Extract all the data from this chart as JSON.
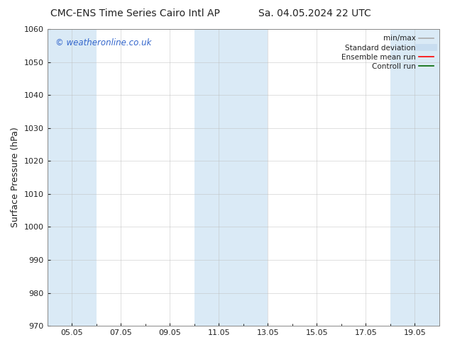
{
  "title": "CMC-ENS Time Series Cairo Intl AP",
  "title2": "Sa. 04.05.2024 22 UTC",
  "ylabel": "Surface Pressure (hPa)",
  "ylim": [
    970,
    1060
  ],
  "yticks": [
    970,
    980,
    990,
    1000,
    1010,
    1020,
    1030,
    1040,
    1050,
    1060
  ],
  "xtick_labels": [
    "05.05",
    "07.05",
    "09.05",
    "11.05",
    "13.05",
    "15.05",
    "17.05",
    "19.05"
  ],
  "xtick_positions": [
    1,
    3,
    5,
    7,
    9,
    11,
    13,
    15
  ],
  "xlim": [
    0,
    16
  ],
  "shaded_bands": [
    {
      "x_start": 0,
      "x_end": 2
    },
    {
      "x_start": 6,
      "x_end": 9
    },
    {
      "x_start": 14,
      "x_end": 16
    }
  ],
  "shade_color": "#daeaf6",
  "background_color": "#ffffff",
  "watermark_text": "© weatheronline.co.uk",
  "watermark_color": "#3366cc",
  "legend_entries": [
    {
      "label": "min/max",
      "color": "#aaaaaa",
      "lw": 1.2
    },
    {
      "label": "Standard deviation",
      "color": "#c8ddf0",
      "lw": 7
    },
    {
      "label": "Ensemble mean run",
      "color": "#ff0000",
      "lw": 1.2
    },
    {
      "label": "Controll run",
      "color": "#006600",
      "lw": 1.2
    }
  ],
  "font_color": "#222222",
  "title_fontsize": 10,
  "tick_fontsize": 8,
  "ylabel_fontsize": 9,
  "legend_fontsize": 7.5
}
